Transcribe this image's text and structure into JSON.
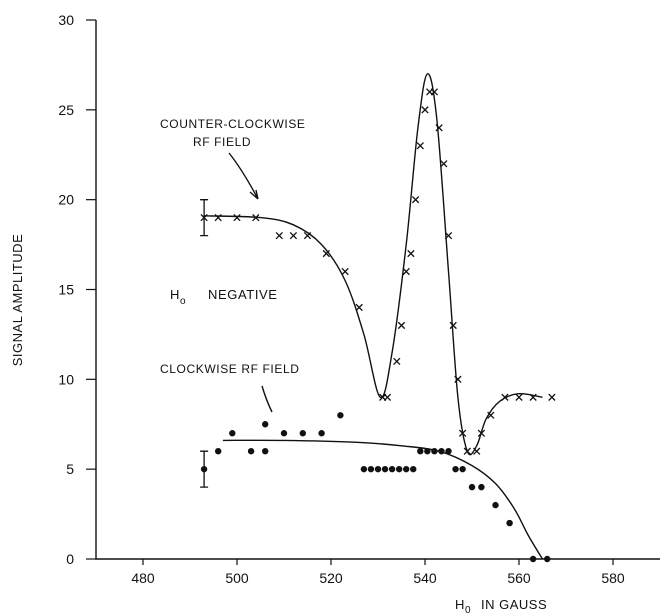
{
  "chart_data": {
    "type": "scatter",
    "xlabel_main": "H",
    "xlabel_sub": "0",
    "xlabel_unit": "IN GAUSS",
    "ylabel": "SIGNAL AMPLITUDE",
    "xlim": [
      470,
      590
    ],
    "ylim": [
      0,
      30
    ],
    "x_ticks": [
      480,
      500,
      520,
      540,
      560,
      580
    ],
    "x_tick_labels": [
      "480",
      "500",
      "520",
      "540",
      "560",
      "580"
    ],
    "y_ticks": [
      0,
      5,
      10,
      15,
      20,
      25,
      30
    ],
    "y_tick_labels": [
      "0",
      "5",
      "10",
      "15",
      "20",
      "25",
      "30"
    ],
    "annotations": {
      "ccw_line1": "COUNTER-CLOCKWISE",
      "ccw_line2": "RF FIELD",
      "cw": "CLOCKWISE RF FIELD",
      "h0_main": "H",
      "h0_sub": "o",
      "negative": "NEGATIVE"
    },
    "series": [
      {
        "marker": "x",
        "points": [
          [
            493,
            19
          ],
          [
            496,
            19
          ],
          [
            500,
            19
          ],
          [
            504,
            19
          ],
          [
            509,
            18
          ],
          [
            512,
            18
          ],
          [
            515,
            18
          ],
          [
            519,
            17
          ],
          [
            523,
            16
          ],
          [
            526,
            14
          ],
          [
            531,
            9
          ],
          [
            532,
            9
          ],
          [
            534,
            11
          ],
          [
            535,
            13
          ],
          [
            536,
            16
          ],
          [
            537,
            17
          ],
          [
            538,
            20
          ],
          [
            539,
            23
          ],
          [
            540,
            25
          ],
          [
            541,
            26
          ],
          [
            542,
            26
          ],
          [
            543,
            24
          ],
          [
            544,
            22
          ],
          [
            545,
            18
          ],
          [
            546,
            13
          ],
          [
            547,
            10
          ],
          [
            548,
            7
          ],
          [
            549,
            6
          ],
          [
            551,
            6
          ],
          [
            552,
            7
          ],
          [
            554,
            8
          ],
          [
            557,
            9
          ],
          [
            560,
            9
          ],
          [
            563,
            9
          ],
          [
            567,
            9
          ]
        ],
        "error_bar": {
          "x": 493,
          "y": 19,
          "low": 18,
          "high": 20
        },
        "curve": [
          [
            493,
            19.1
          ],
          [
            505,
            19.0
          ],
          [
            512,
            18.6
          ],
          [
            518,
            17.5
          ],
          [
            523,
            15.5
          ],
          [
            527,
            12.5
          ],
          [
            530.5,
            9.0
          ],
          [
            533,
            11.5
          ],
          [
            536,
            17.5
          ],
          [
            538.5,
            24.0
          ],
          [
            540.5,
            27.0
          ],
          [
            542.5,
            24.5
          ],
          [
            545,
            16.0
          ],
          [
            547,
            9.0
          ],
          [
            549,
            6.0
          ],
          [
            551,
            6.3
          ],
          [
            553,
            7.8
          ],
          [
            556,
            8.8
          ],
          [
            560,
            9.2
          ],
          [
            565,
            9.0
          ]
        ]
      },
      {
        "marker": "dot",
        "points": [
          [
            493,
            5
          ],
          [
            496,
            6
          ],
          [
            499,
            7
          ],
          [
            503,
            6
          ],
          [
            506,
            6
          ],
          [
            506,
            7.5
          ],
          [
            510,
            7
          ],
          [
            514,
            7
          ],
          [
            518,
            7
          ],
          [
            522,
            8
          ],
          [
            527,
            5
          ],
          [
            528.5,
            5
          ],
          [
            530,
            5
          ],
          [
            531.5,
            5
          ],
          [
            533,
            5
          ],
          [
            534.5,
            5
          ],
          [
            536,
            5
          ],
          [
            537.5,
            5
          ],
          [
            539,
            6
          ],
          [
            540.5,
            6
          ],
          [
            542,
            6
          ],
          [
            543.5,
            6
          ],
          [
            545,
            6
          ],
          [
            546.5,
            5
          ],
          [
            548,
            5
          ],
          [
            550,
            4
          ],
          [
            552,
            4
          ],
          [
            555,
            3
          ],
          [
            558,
            2
          ],
          [
            563,
            0
          ],
          [
            566,
            0
          ]
        ],
        "error_bar": {
          "x": 493,
          "y": 5,
          "low": 4,
          "high": 6
        },
        "curve": [
          [
            497,
            6.6
          ],
          [
            510,
            6.6
          ],
          [
            525,
            6.5
          ],
          [
            535,
            6.3
          ],
          [
            543,
            6.0
          ],
          [
            550,
            5.2
          ],
          [
            555,
            4.2
          ],
          [
            559,
            2.8
          ],
          [
            562,
            1.3
          ],
          [
            565,
            0.0
          ]
        ]
      }
    ]
  }
}
